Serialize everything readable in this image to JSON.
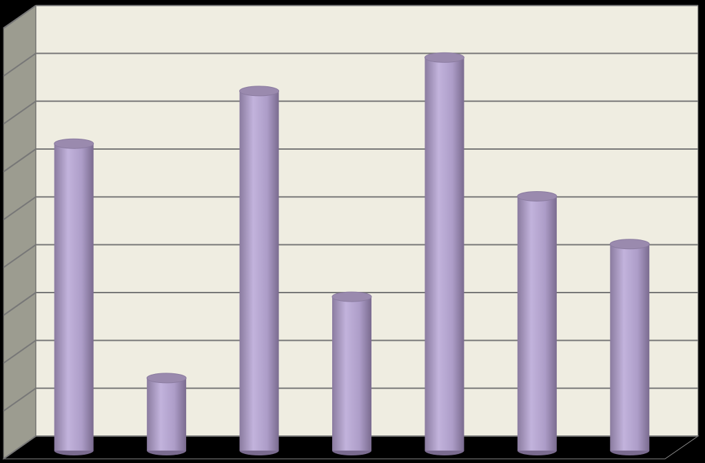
{
  "chart_data": {
    "type": "cylinder",
    "categories": [
      null,
      null,
      null,
      null,
      null,
      null,
      null
    ],
    "values": [
      6.3,
      1.4,
      7.4,
      3.1,
      8.1,
      5.2,
      4.2
    ],
    "color": "#b8a9d4",
    "ylim": [
      0,
      9
    ],
    "yticks": [
      0,
      1,
      2,
      3,
      4,
      5,
      6,
      7,
      8,
      9
    ],
    "grid": true
  }
}
